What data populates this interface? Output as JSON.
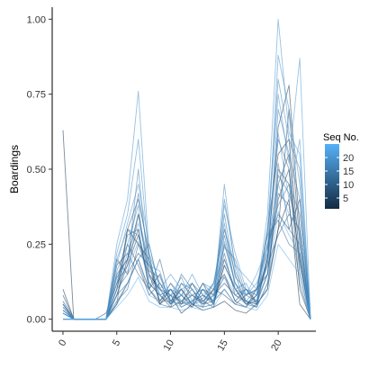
{
  "chart_data": {
    "type": "line",
    "ylabel": "Boardings",
    "xlabel": "",
    "xlim": [
      -1,
      23.5
    ],
    "ylim": [
      -0.04,
      1.04
    ],
    "x_ticks": [
      0,
      5,
      10,
      15,
      20
    ],
    "y_ticks": [
      0.0,
      0.25,
      0.5,
      0.75,
      1.0
    ],
    "x_tick_labels": [
      "0",
      "5",
      "10",
      "15",
      "20"
    ],
    "y_tick_labels": [
      "0.00",
      "0.25",
      "0.50",
      "0.75",
      "1.00"
    ],
    "grid": false,
    "legend": {
      "title": "Seq No.",
      "placement": "right",
      "type": "colorbar",
      "range": [
        1,
        25
      ],
      "breaks": [
        5,
        10,
        15,
        20
      ],
      "break_labels": [
        "5",
        "10",
        "15",
        "20"
      ],
      "color_low": "#132b43",
      "color_high": "#56b1f7"
    },
    "x": [
      0,
      1,
      2,
      3,
      4,
      5,
      6,
      7,
      8,
      9,
      10,
      11,
      12,
      13,
      14,
      15,
      16,
      17,
      18,
      19,
      20,
      21,
      22,
      23
    ],
    "series": [
      {
        "seq": 1,
        "values": [
          0.63,
          0.0,
          0.0,
          0.0,
          0.0,
          0.05,
          0.12,
          0.2,
          0.1,
          0.05,
          0.08,
          0.02,
          0.05,
          0.03,
          0.04,
          0.06,
          0.03,
          0.02,
          0.05,
          0.1,
          0.3,
          0.4,
          0.05,
          0.0
        ]
      },
      {
        "seq": 2,
        "values": [
          0.1,
          0.0,
          0.0,
          0.0,
          0.0,
          0.08,
          0.2,
          0.35,
          0.15,
          0.1,
          0.05,
          0.1,
          0.05,
          0.12,
          0.05,
          0.2,
          0.1,
          0.05,
          0.08,
          0.3,
          0.55,
          0.6,
          0.2,
          0.0
        ]
      },
      {
        "seq": 3,
        "values": [
          0.05,
          0.0,
          0.0,
          0.0,
          0.0,
          0.1,
          0.3,
          0.25,
          0.2,
          0.05,
          0.1,
          0.05,
          0.12,
          0.06,
          0.1,
          0.15,
          0.06,
          0.1,
          0.05,
          0.2,
          0.64,
          0.78,
          0.3,
          0.0
        ]
      },
      {
        "seq": 4,
        "values": [
          0.08,
          0.0,
          0.0,
          0.0,
          0.0,
          0.15,
          0.2,
          0.3,
          0.1,
          0.15,
          0.05,
          0.08,
          0.04,
          0.1,
          0.06,
          0.1,
          0.05,
          0.04,
          0.1,
          0.15,
          0.4,
          0.5,
          0.1,
          0.0
        ]
      },
      {
        "seq": 5,
        "values": [
          0.02,
          0.0,
          0.0,
          0.0,
          0.02,
          0.12,
          0.18,
          0.28,
          0.12,
          0.08,
          0.04,
          0.06,
          0.1,
          0.05,
          0.08,
          0.12,
          0.08,
          0.06,
          0.04,
          0.12,
          0.3,
          0.7,
          0.25,
          0.0
        ]
      },
      {
        "seq": 6,
        "values": [
          0.03,
          0.0,
          0.0,
          0.0,
          0.0,
          0.2,
          0.15,
          0.22,
          0.18,
          0.06,
          0.1,
          0.04,
          0.06,
          0.08,
          0.05,
          0.18,
          0.1,
          0.05,
          0.06,
          0.2,
          0.45,
          0.55,
          0.15,
          0.0
        ]
      },
      {
        "seq": 7,
        "values": [
          0.0,
          0.0,
          0.0,
          0.0,
          0.0,
          0.1,
          0.25,
          0.18,
          0.08,
          0.12,
          0.06,
          0.1,
          0.05,
          0.04,
          0.1,
          0.08,
          0.05,
          0.08,
          0.1,
          0.25,
          0.35,
          0.3,
          0.4,
          0.0
        ]
      },
      {
        "seq": 8,
        "values": [
          0.05,
          0.0,
          0.0,
          0.0,
          0.0,
          0.05,
          0.3,
          0.4,
          0.22,
          0.05,
          0.04,
          0.12,
          0.08,
          0.06,
          0.04,
          0.25,
          0.12,
          0.06,
          0.05,
          0.1,
          0.5,
          0.45,
          0.2,
          0.0
        ]
      },
      {
        "seq": 9,
        "values": [
          0.02,
          0.0,
          0.0,
          0.0,
          0.0,
          0.08,
          0.12,
          0.2,
          0.25,
          0.1,
          0.08,
          0.06,
          0.04,
          0.1,
          0.08,
          0.14,
          0.06,
          0.04,
          0.08,
          0.18,
          0.28,
          0.35,
          0.3,
          0.0
        ]
      },
      {
        "seq": 10,
        "values": [
          0.04,
          0.0,
          0.0,
          0.0,
          0.0,
          0.18,
          0.22,
          0.15,
          0.1,
          0.2,
          0.06,
          0.05,
          0.08,
          0.05,
          0.06,
          0.22,
          0.08,
          0.1,
          0.06,
          0.15,
          0.42,
          0.38,
          0.12,
          0.0
        ]
      },
      {
        "seq": 11,
        "values": [
          0.0,
          0.0,
          0.0,
          0.0,
          0.0,
          0.06,
          0.1,
          0.25,
          0.15,
          0.06,
          0.12,
          0.08,
          0.05,
          0.07,
          0.12,
          0.3,
          0.15,
          0.05,
          0.04,
          0.22,
          0.6,
          0.5,
          0.18,
          0.0
        ]
      },
      {
        "seq": 12,
        "values": [
          0.03,
          0.0,
          0.0,
          0.0,
          0.0,
          0.12,
          0.28,
          0.3,
          0.12,
          0.08,
          0.05,
          0.15,
          0.1,
          0.04,
          0.05,
          0.18,
          0.1,
          0.08,
          0.1,
          0.28,
          0.33,
          0.25,
          0.22,
          0.0
        ]
      },
      {
        "seq": 13,
        "values": [
          0.06,
          0.0,
          0.0,
          0.0,
          0.0,
          0.1,
          0.15,
          0.35,
          0.18,
          0.12,
          0.06,
          0.08,
          0.12,
          0.08,
          0.06,
          0.28,
          0.12,
          0.06,
          0.05,
          0.15,
          0.48,
          0.42,
          0.28,
          0.0
        ]
      },
      {
        "seq": 14,
        "values": [
          0.02,
          0.0,
          0.0,
          0.0,
          0.0,
          0.14,
          0.2,
          0.42,
          0.2,
          0.08,
          0.1,
          0.05,
          0.06,
          0.12,
          0.08,
          0.35,
          0.14,
          0.1,
          0.08,
          0.2,
          0.52,
          0.3,
          0.25,
          0.0
        ]
      },
      {
        "seq": 15,
        "values": [
          0.0,
          0.0,
          0.0,
          0.0,
          0.0,
          0.08,
          0.18,
          0.5,
          0.14,
          0.1,
          0.08,
          0.1,
          0.05,
          0.06,
          0.1,
          0.24,
          0.2,
          0.08,
          0.06,
          0.25,
          0.38,
          0.45,
          0.35,
          0.0
        ]
      },
      {
        "seq": 16,
        "values": [
          0.05,
          0.0,
          0.0,
          0.0,
          0.0,
          0.16,
          0.25,
          0.38,
          0.1,
          0.06,
          0.12,
          0.06,
          0.08,
          0.1,
          0.05,
          0.4,
          0.18,
          0.06,
          0.1,
          0.18,
          0.7,
          0.55,
          0.4,
          0.0
        ]
      },
      {
        "seq": 17,
        "values": [
          0.03,
          0.0,
          0.0,
          0.0,
          0.0,
          0.2,
          0.3,
          0.28,
          0.16,
          0.14,
          0.06,
          0.12,
          0.1,
          0.05,
          0.12,
          0.32,
          0.1,
          0.12,
          0.05,
          0.3,
          0.8,
          0.6,
          0.5,
          0.0
        ]
      },
      {
        "seq": 18,
        "values": [
          0.0,
          0.0,
          0.0,
          0.0,
          0.0,
          0.22,
          0.35,
          0.6,
          0.2,
          0.08,
          0.1,
          0.08,
          0.15,
          0.08,
          0.06,
          0.45,
          0.16,
          0.08,
          0.12,
          0.22,
          0.88,
          0.7,
          0.45,
          0.0
        ]
      },
      {
        "seq": 19,
        "values": [
          0.04,
          0.0,
          0.0,
          0.0,
          0.0,
          0.25,
          0.4,
          0.76,
          0.22,
          0.12,
          0.08,
          0.14,
          0.06,
          0.12,
          0.1,
          0.38,
          0.22,
          0.1,
          0.08,
          0.35,
          1.0,
          0.62,
          0.55,
          0.0
        ]
      },
      {
        "seq": 20,
        "values": [
          0.06,
          0.0,
          0.0,
          0.0,
          0.0,
          0.18,
          0.32,
          0.45,
          0.25,
          0.1,
          0.15,
          0.1,
          0.12,
          0.06,
          0.08,
          0.3,
          0.18,
          0.14,
          0.1,
          0.28,
          0.75,
          0.52,
          0.87,
          0.0
        ]
      },
      {
        "seq": 21,
        "values": [
          0.02,
          0.0,
          0.0,
          0.0,
          0.0,
          0.1,
          0.22,
          0.32,
          0.18,
          0.16,
          0.05,
          0.08,
          0.08,
          0.1,
          0.06,
          0.26,
          0.12,
          0.08,
          0.15,
          0.24,
          0.62,
          0.4,
          0.6,
          0.0
        ]
      },
      {
        "seq": 22,
        "values": [
          0.0,
          0.0,
          0.0,
          0.0,
          0.0,
          0.14,
          0.16,
          0.26,
          0.12,
          0.08,
          0.1,
          0.06,
          0.05,
          0.08,
          0.12,
          0.2,
          0.1,
          0.06,
          0.06,
          0.18,
          0.45,
          0.35,
          0.3,
          0.0
        ]
      },
      {
        "seq": 23,
        "values": [
          0.02,
          0.0,
          0.0,
          0.0,
          0.0,
          0.06,
          0.12,
          0.2,
          0.08,
          0.06,
          0.06,
          0.04,
          0.06,
          0.04,
          0.05,
          0.15,
          0.08,
          0.05,
          0.04,
          0.12,
          0.36,
          0.28,
          0.22,
          0.0
        ]
      },
      {
        "seq": 24,
        "values": [
          0.0,
          0.0,
          0.0,
          0.0,
          0.0,
          0.04,
          0.08,
          0.14,
          0.06,
          0.04,
          0.04,
          0.03,
          0.04,
          0.03,
          0.04,
          0.1,
          0.05,
          0.04,
          0.03,
          0.08,
          0.25,
          0.2,
          0.15,
          0.0
        ]
      }
    ]
  }
}
